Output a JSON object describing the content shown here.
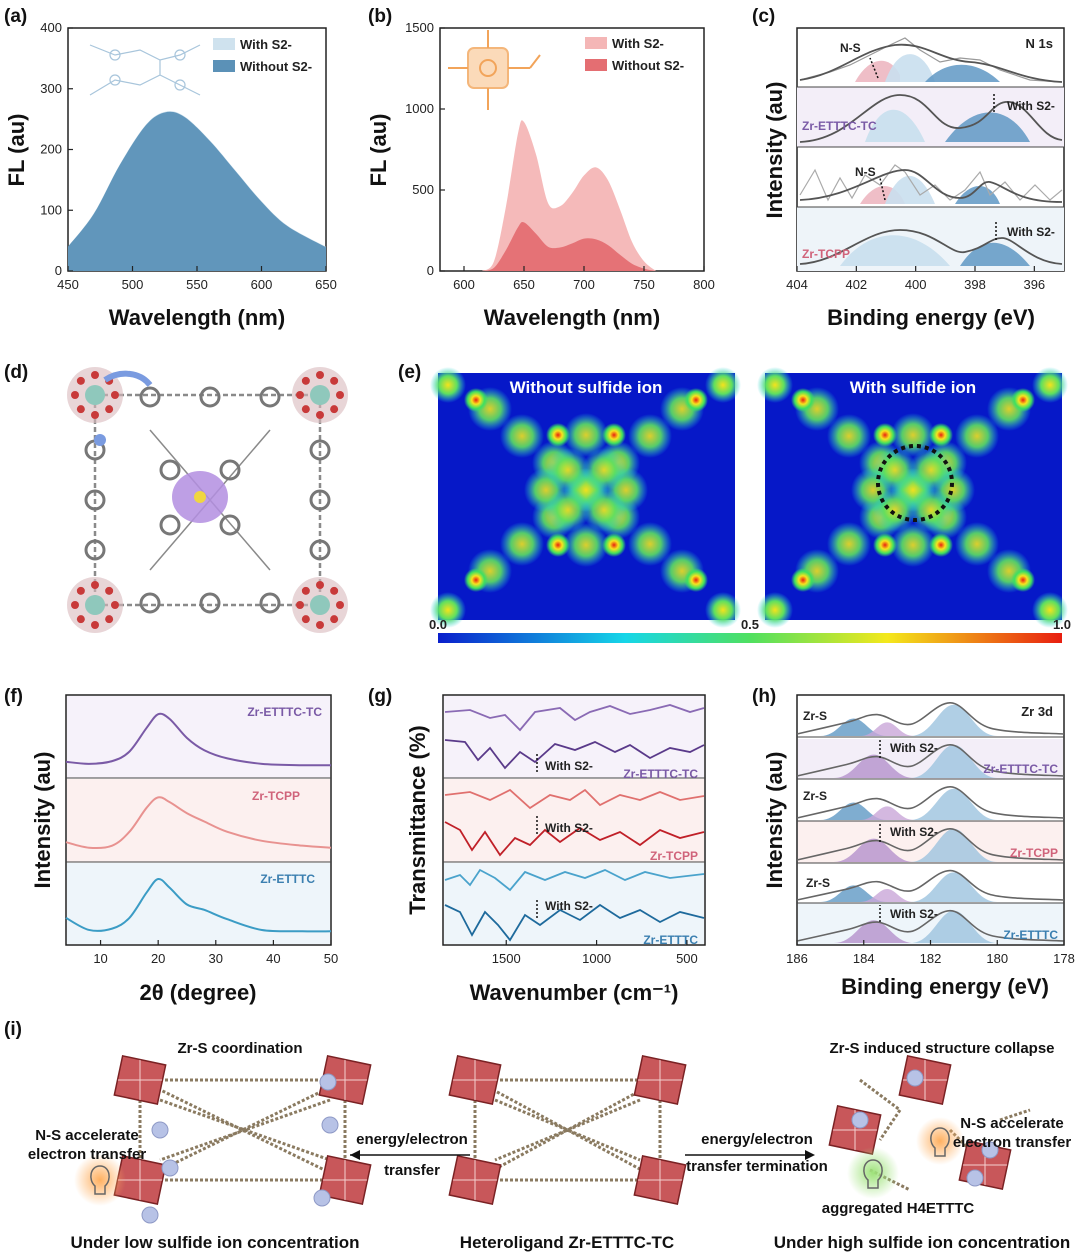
{
  "panel_labels": {
    "a": "(a)",
    "b": "(b)",
    "c": "(c)",
    "d": "(d)",
    "e": "(e)",
    "f": "(f)",
    "g": "(g)",
    "h": "(h)",
    "i": "(i)"
  },
  "chart_data": [
    {
      "id": "a",
      "type": "area",
      "title": "",
      "xlabel": "Wavelength (nm)",
      "ylabel": "FL (au)",
      "xlim": [
        450,
        650
      ],
      "ylim": [
        0,
        400
      ],
      "xticks": [
        450,
        500,
        550,
        600,
        650
      ],
      "yticks": [
        0,
        100,
        200,
        300,
        400
      ],
      "legend": [
        "With S2-",
        "Without S2-"
      ],
      "legend_colors": [
        "#cfe2ee",
        "#5b91b7"
      ],
      "series": [
        {
          "name": "With S2-",
          "x": [
            450,
            470,
            490,
            510,
            525,
            540,
            560,
            580,
            600,
            620,
            650
          ],
          "values": [
            40,
            95,
            175,
            240,
            262,
            255,
            215,
            165,
            115,
            75,
            40
          ]
        },
        {
          "name": "Without S2-",
          "x": [
            450,
            470,
            490,
            510,
            525,
            540,
            560,
            580,
            600,
            620,
            650
          ],
          "values": [
            40,
            94,
            174,
            239,
            261,
            254,
            214,
            164,
            114,
            74,
            39
          ]
        }
      ]
    },
    {
      "id": "b",
      "type": "area",
      "title": "",
      "xlabel": "Wavelength (nm)",
      "ylabel": "FL (au)",
      "xlim": [
        580,
        800
      ],
      "ylim": [
        0,
        1500
      ],
      "xticks": [
        600,
        650,
        700,
        750,
        800
      ],
      "yticks": [
        0,
        500,
        1000,
        1500
      ],
      "legend": [
        "With S2-",
        "Without S2-"
      ],
      "legend_colors": [
        "#f4b6b6",
        "#e46e72"
      ],
      "series": [
        {
          "name": "With S2-",
          "x": [
            615,
            625,
            635,
            645,
            650,
            660,
            670,
            680,
            690,
            700,
            710,
            720,
            730,
            740,
            750,
            760
          ],
          "values": [
            0,
            60,
            400,
            850,
            920,
            720,
            420,
            400,
            480,
            590,
            640,
            560,
            380,
            180,
            60,
            0
          ]
        },
        {
          "name": "Without S2-",
          "x": [
            615,
            625,
            635,
            645,
            650,
            660,
            670,
            680,
            690,
            700,
            710,
            720,
            730,
            740,
            750,
            760
          ],
          "values": [
            0,
            20,
            130,
            270,
            300,
            230,
            150,
            145,
            170,
            200,
            195,
            160,
            100,
            45,
            15,
            0
          ]
        }
      ]
    },
    {
      "id": "c",
      "type": "line",
      "title": "N 1s",
      "xlabel": "Binding energy (eV)",
      "ylabel": "Intensity (au)",
      "xlim": [
        404,
        395
      ],
      "xticks": [
        404,
        402,
        400,
        398,
        396
      ],
      "stack_labels": [
        "Zr-ETTTC-TC",
        "Zr-TCPP"
      ],
      "annotations": [
        "N-S",
        "With S2-",
        "N-S",
        "With S2-"
      ]
    },
    {
      "id": "e",
      "type": "heatmap",
      "maps": [
        "Without sulfide ion",
        "With sulfide ion"
      ],
      "colorbar_ticks": [
        "0.0",
        "0.5",
        "1.0"
      ]
    },
    {
      "id": "f",
      "type": "line",
      "xlabel": "2θ (degree)",
      "ylabel": "Intensity (au)",
      "xlim": [
        4,
        50
      ],
      "xticks": [
        10,
        20,
        30,
        40,
        50
      ],
      "series": [
        {
          "name": "Zr-ETTTC-TC",
          "color": "#7a5aa6",
          "x": [
            4,
            8,
            12,
            15,
            18,
            20,
            22,
            25,
            28,
            32,
            38,
            45,
            50
          ],
          "values": [
            0.15,
            0.12,
            0.16,
            0.3,
            0.65,
            0.85,
            0.78,
            0.5,
            0.32,
            0.2,
            0.12,
            0.1,
            0.1
          ]
        },
        {
          "name": "Zr-TCPP",
          "color": "#e89290",
          "x": [
            4,
            8,
            12,
            15,
            18,
            20,
            22,
            25,
            28,
            32,
            38,
            45,
            50
          ],
          "values": [
            0.2,
            0.12,
            0.15,
            0.35,
            0.7,
            0.85,
            0.78,
            0.62,
            0.5,
            0.35,
            0.22,
            0.15,
            0.12
          ]
        },
        {
          "name": "Zr-ETTTC",
          "color": "#3b9cc5",
          "x": [
            4,
            8,
            12,
            15,
            18,
            20,
            22,
            25,
            28,
            32,
            38,
            45,
            50
          ],
          "values": [
            0.3,
            0.12,
            0.14,
            0.3,
            0.68,
            0.88,
            0.75,
            0.5,
            0.42,
            0.28,
            0.12,
            0.1,
            0.1
          ]
        }
      ]
    },
    {
      "id": "g",
      "type": "line",
      "xlabel": "Wavenumber (cm⁻¹)",
      "ylabel": "Transmittance (%)",
      "xlim": [
        1850,
        400
      ],
      "xticks": [
        1500,
        1000,
        500
      ],
      "stack_labels": [
        "Zr-ETTTC-TC",
        "Zr-TCPP",
        "Zr-ETTTC"
      ],
      "annotations": [
        "With S2-",
        "With S2-",
        "With S2-"
      ]
    },
    {
      "id": "h",
      "type": "line",
      "title": "Zr 3d",
      "xlabel": "Binding energy (eV)",
      "ylabel": "Intensity (au)",
      "xlim": [
        186,
        178
      ],
      "xticks": [
        186,
        184,
        182,
        180,
        178
      ],
      "stack_labels": [
        "Zr-ETTTC-TC",
        "Zr-TCPP",
        "Zr-ETTTC"
      ],
      "annotations": [
        "Zr-S",
        "With S2-",
        "Zr-S",
        "With S2-",
        "Zr-S",
        "With S2-"
      ]
    }
  ],
  "panel_i": {
    "left_title": "Zr-S coordination",
    "left_note_1": "N-S accelerate",
    "left_note_2": "electron transfer",
    "left_caption": "Under low sulfide ion concentration",
    "arrow_left_1": "energy/electron",
    "arrow_left_2": "transfer",
    "center_caption": "Heteroligand Zr-ETTTC-TC",
    "arrow_right_1": "energy/electron",
    "arrow_right_2": "transfer termination",
    "right_title": "Zr-S induced structure collapse",
    "right_note_1": "N-S accelerate",
    "right_note_2": "electron transfer",
    "right_note_3": "aggregated H4ETTTC",
    "right_caption": "Under high sulfide ion concentration"
  },
  "colors": {
    "blue": "#5b91b7",
    "lightblue": "#cfe2ee",
    "pink": "#f4b6b6",
    "red": "#e46e72",
    "purple": "#7a5aa6"
  }
}
